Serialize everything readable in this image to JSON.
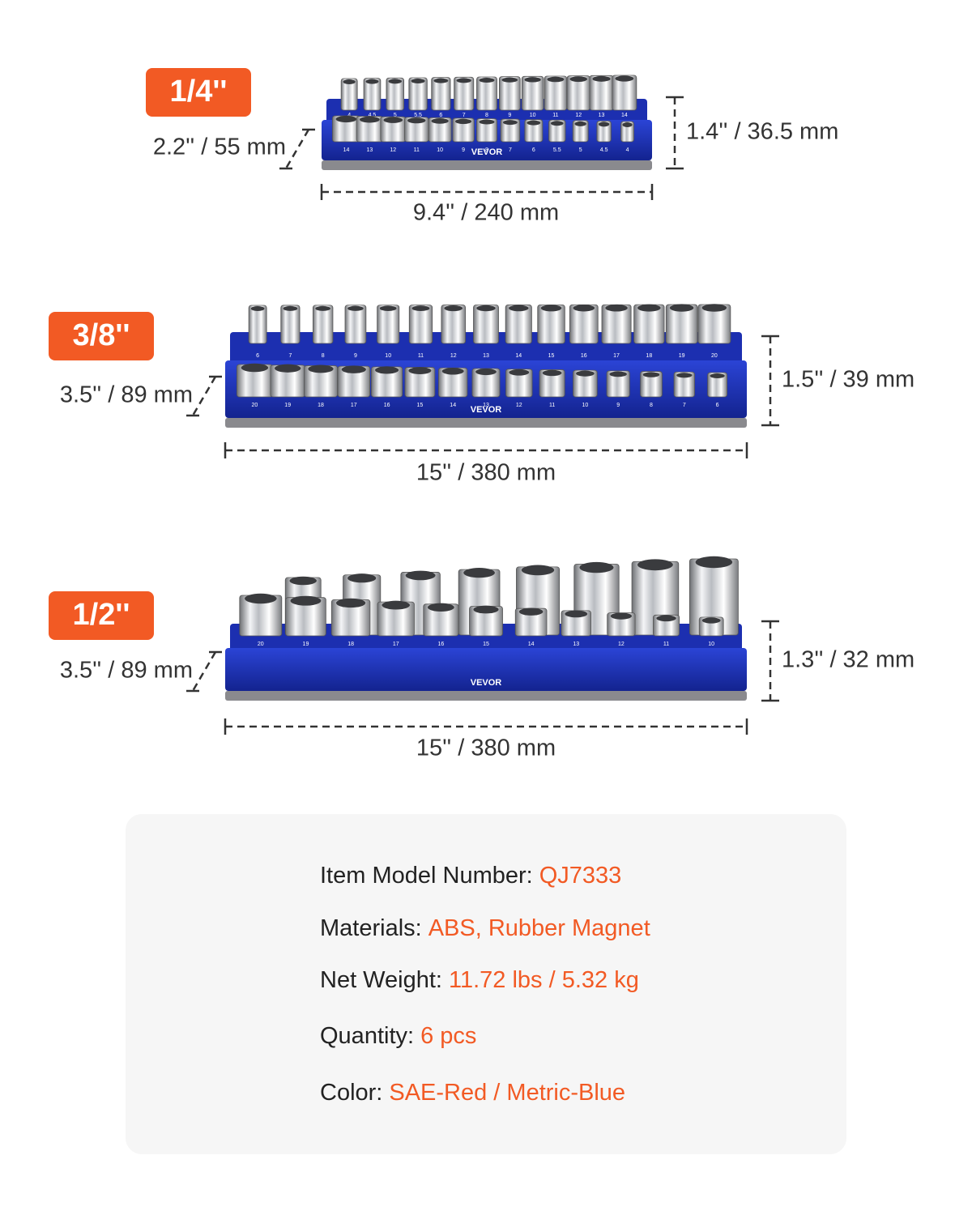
{
  "sections": [
    {
      "drive": "1/4''",
      "depth": "2.2'' / 55 mm",
      "height": "1.4'' / 36.5 mm",
      "length": "9.4'' / 240 mm",
      "tray": {
        "brand": "VEVOR",
        "back_row": [
          "4",
          "4.5",
          "5",
          "5.5",
          "6",
          "7",
          "8",
          "9",
          "10",
          "11",
          "12",
          "13",
          "14"
        ],
        "front_row": [
          "14",
          "13",
          "12",
          "11",
          "10",
          "9",
          "8",
          "7",
          "6",
          "5.5",
          "5",
          "4.5",
          "4"
        ]
      }
    },
    {
      "drive": "3/8''",
      "depth": "3.5'' / 89 mm",
      "height": "1.5'' / 39 mm",
      "length": "15'' / 380 mm",
      "tray": {
        "brand": "VEVOR",
        "back_row": [
          "6",
          "7",
          "8",
          "9",
          "10",
          "11",
          "12",
          "13",
          "14",
          "15",
          "16",
          "17",
          "18",
          "19",
          "20"
        ],
        "front_row": [
          "20",
          "19",
          "18",
          "17",
          "16",
          "15",
          "14",
          "13",
          "12",
          "11",
          "10",
          "9",
          "8",
          "7",
          "6"
        ]
      }
    },
    {
      "drive": "1/2''",
      "depth": "3.5'' / 89 mm",
      "height": "1.3'' / 32 mm",
      "length": "15'' / 380 mm",
      "tray": {
        "brand": "VEVOR",
        "front_row": [
          "20",
          "19",
          "18",
          "17",
          "16",
          "15",
          "14",
          "13",
          "12",
          "11",
          "10"
        ]
      }
    }
  ],
  "specs": [
    {
      "label": "Item Model Number:",
      "value": "QJ7333"
    },
    {
      "label": "Materials:",
      "value": "ABS, Rubber Magnet"
    },
    {
      "label": "Net Weight:",
      "value": "11.72 lbs / 5.32 kg"
    },
    {
      "label": "Quantity:",
      "value": "6 pcs"
    },
    {
      "label": "Color:",
      "value": "SAE-Red / Metric-Blue"
    }
  ]
}
